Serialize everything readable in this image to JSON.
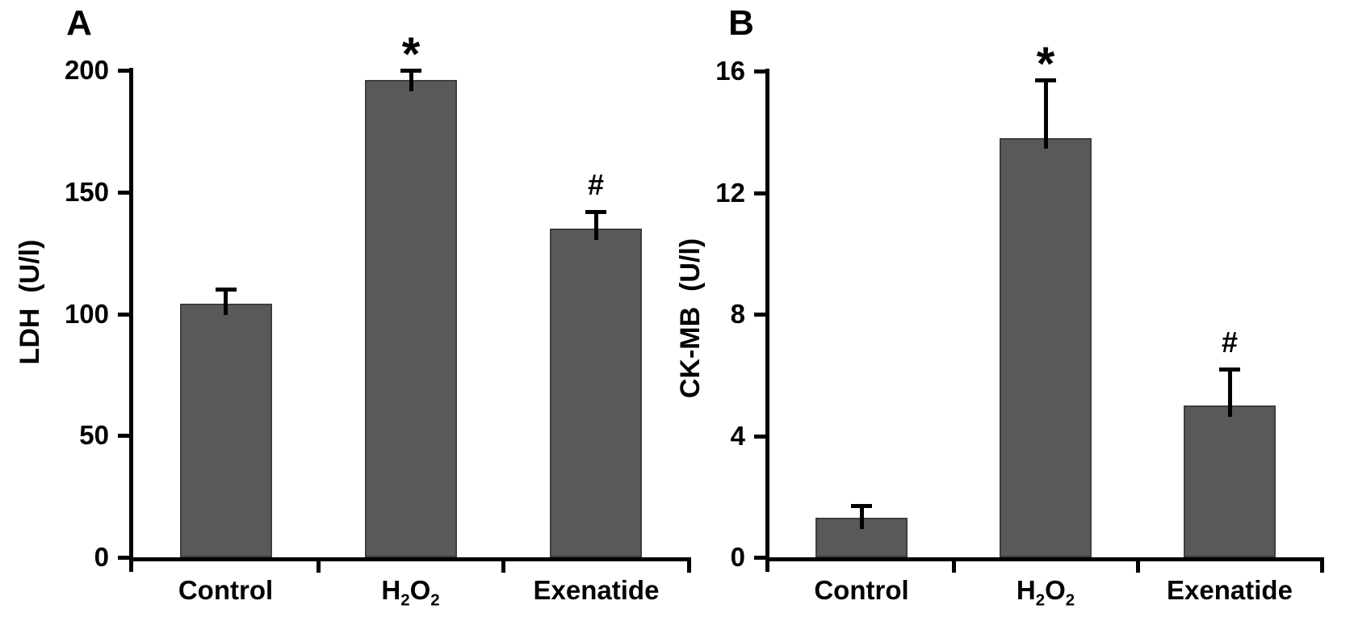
{
  "figure_type": "two-panel bar chart, cardiac injury markers",
  "style": {
    "bar_fill": "#595959",
    "bar_border": "#3e3e3e",
    "axis_color": "#000000",
    "background": "#ffffff",
    "text_color": "#000000"
  },
  "chart_data": [
    {
      "type": "bar",
      "panel_label": "A",
      "title": "",
      "xlabel": "",
      "ylabel": "LDH  (U/l)",
      "categories": [
        "Control",
        "H2O2",
        "Exenatide"
      ],
      "values": [
        104,
        196,
        135
      ],
      "errors_upper": [
        6,
        4,
        7
      ],
      "significance": [
        "",
        "*",
        "#"
      ],
      "ylim": [
        0,
        200
      ],
      "yticks": [
        0,
        50,
        100,
        150,
        200
      ],
      "bar_color": "#595959",
      "grid": false,
      "legend": "none"
    },
    {
      "type": "bar",
      "panel_label": "B",
      "title": "",
      "xlabel": "",
      "ylabel": "CK-MB  (U/l)",
      "categories": [
        "Control",
        "H2O2",
        "Exenatide"
      ],
      "values": [
        1.3,
        13.8,
        5.0
      ],
      "errors_upper": [
        0.4,
        1.9,
        1.2
      ],
      "significance": [
        "",
        "*",
        "#"
      ],
      "ylim": [
        0,
        16
      ],
      "yticks": [
        0,
        4,
        8,
        12,
        16
      ],
      "bar_color": "#595959",
      "grid": false,
      "legend": "none"
    }
  ]
}
